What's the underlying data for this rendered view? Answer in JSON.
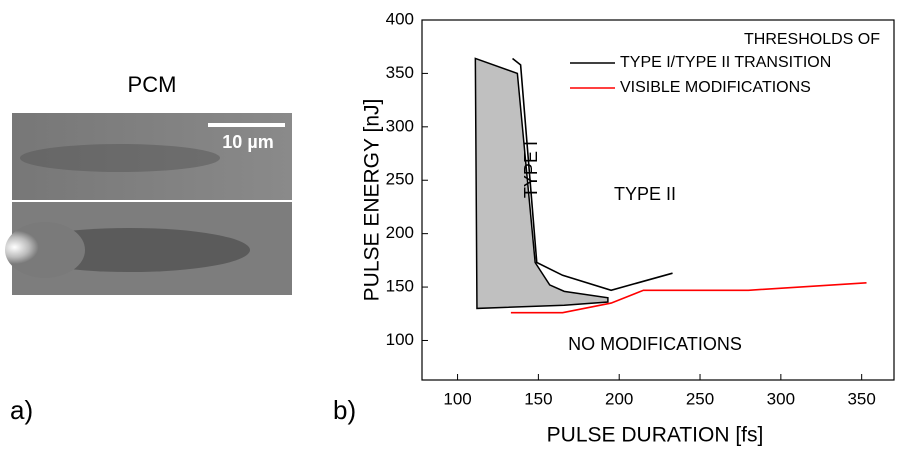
{
  "image_panel": {
    "title": "PCM",
    "scale_bar": "10 µm",
    "label": "a)"
  },
  "chart_data": {
    "type": "line",
    "panel_label": "b)",
    "x_label": "PULSE DURATION [fs]",
    "y_label": "PULSE ENERGY [nJ]",
    "xlim": [
      78,
      370
    ],
    "xticks": [
      100,
      150,
      200,
      250,
      300,
      350
    ],
    "ylim": [
      63,
      400
    ],
    "yticks": [
      100,
      150,
      200,
      250,
      300,
      350,
      400
    ],
    "legend_title": "THRESHOLDS OF",
    "legend": "upper right",
    "series": [
      {
        "name": "TYPE I/TYPE II TRANSITION",
        "color": "#000000",
        "x": [
          134,
          139,
          149,
          165,
          195,
          233
        ],
        "values": [
          364,
          358,
          173,
          161,
          147,
          163
        ]
      },
      {
        "name": "VISIBLE MODIFICATIONS",
        "color": "#ff0000",
        "x": [
          133,
          165,
          195,
          215,
          233,
          280,
          353
        ],
        "values": [
          126,
          126,
          135,
          147,
          147,
          147,
          154
        ]
      }
    ],
    "regions": [
      {
        "label": "TYPE I",
        "color": "#c0c0c0",
        "x": [
          111,
          137,
          148,
          157,
          166,
          193,
          193,
          166,
          112
        ],
        "values": [
          364,
          350,
          173,
          152,
          146,
          140,
          136,
          133,
          130
        ]
      }
    ],
    "annotations": [
      "TYPE II",
      "NO MODIFICATIONS"
    ]
  }
}
